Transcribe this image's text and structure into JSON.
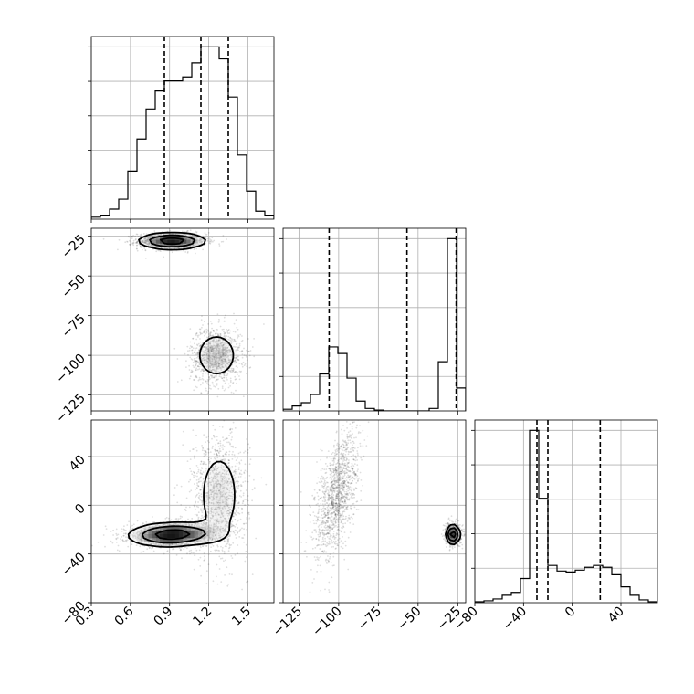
{
  "chart_data": {
    "type": "corner",
    "grid": true,
    "parameters": [
      {
        "range": [
          0.3,
          1.7
        ],
        "ticks": [
          0.3,
          0.6,
          0.9,
          1.2,
          1.5
        ],
        "tick_labels": [
          "0.3",
          "0.6",
          "0.9",
          "1.2",
          "1.5"
        ]
      },
      {
        "range": [
          -135,
          -20
        ],
        "ticks": [
          -125,
          -100,
          -75,
          -50,
          -25
        ],
        "tick_labels": [
          "−125",
          "−100",
          "−75",
          "−50",
          "−25"
        ]
      },
      {
        "range": [
          -80,
          70
        ],
        "ticks": [
          -80,
          -40,
          0,
          40
        ],
        "tick_labels": [
          "−80",
          "−40",
          "0",
          "40"
        ]
      }
    ],
    "marginals": [
      {
        "bin_edges": [
          0.3,
          0.37,
          0.44,
          0.51,
          0.58,
          0.65,
          0.72,
          0.79,
          0.86,
          0.93,
          1.0,
          1.07,
          1.14,
          1.21,
          1.28,
          1.35,
          1.42,
          1.49,
          1.56,
          1.63,
          1.7
        ],
        "counts": [
          1,
          2,
          5,
          10,
          24,
          40,
          55,
          64,
          69,
          69,
          71,
          78,
          86,
          86,
          80,
          61,
          32,
          14,
          4,
          2
        ],
        "quantiles": [
          0.86,
          1.14,
          1.35
        ]
      },
      {
        "bin_edges": [
          -135,
          -129.25,
          -123.5,
          -117.75,
          -112,
          -106.25,
          -100.5,
          -94.75,
          -89,
          -83.25,
          -77.5,
          -71.75,
          -66,
          -60.25,
          -54.5,
          -48.75,
          -43,
          -37.25,
          -31.5,
          -25.75,
          -20
        ],
        "counts": [
          2,
          6,
          10,
          20,
          45,
          78,
          70,
          40,
          12,
          3,
          1,
          0,
          0,
          0,
          0,
          0,
          3,
          60,
          210,
          28
        ],
        "quantiles": [
          -106,
          -57,
          -26
        ]
      },
      {
        "bin_edges": [
          -80,
          -72.5,
          -65,
          -57.5,
          -50,
          -42.5,
          -35,
          -27.5,
          -20,
          -12.5,
          -5,
          2.5,
          10,
          17.5,
          25,
          32.5,
          40,
          47.5,
          55,
          62.5,
          70
        ],
        "counts": [
          1,
          2,
          4,
          8,
          11,
          26,
          185,
          112,
          40,
          34,
          33,
          35,
          38,
          40,
          38,
          30,
          17,
          8,
          3,
          1
        ],
        "quantiles": [
          -29,
          -20,
          23
        ]
      }
    ],
    "joints": [
      {
        "pair": [
          0,
          1
        ],
        "modes": [
          {
            "mean": [
              0.92,
              -28
            ],
            "sd": [
              0.13,
              2.6
            ],
            "rho": 0.0,
            "n": 1300
          },
          {
            "mean": [
              1.26,
              -100
            ],
            "sd": [
              0.1,
              9
            ],
            "rho": 0.0,
            "n": 1100
          }
        ]
      },
      {
        "pair": [
          0,
          2
        ],
        "modes": [
          {
            "mean": [
              0.92,
              -24
            ],
            "sd": [
              0.17,
              5
            ],
            "rho": 0.1,
            "n": 1300
          },
          {
            "mean": [
              1.28,
              8
            ],
            "sd": [
              0.11,
              26
            ],
            "rho": 0.0,
            "n": 1100
          }
        ]
      },
      {
        "pair": [
          1,
          2
        ],
        "modes": [
          {
            "mean": [
              -101,
              10
            ],
            "sd": [
              7,
              27
            ],
            "rho": 0.55,
            "n": 1300
          },
          {
            "mean": [
              -28,
              -24
            ],
            "sd": [
              2.2,
              4
            ],
            "rho": 0.0,
            "n": 1000
          }
        ]
      }
    ]
  }
}
